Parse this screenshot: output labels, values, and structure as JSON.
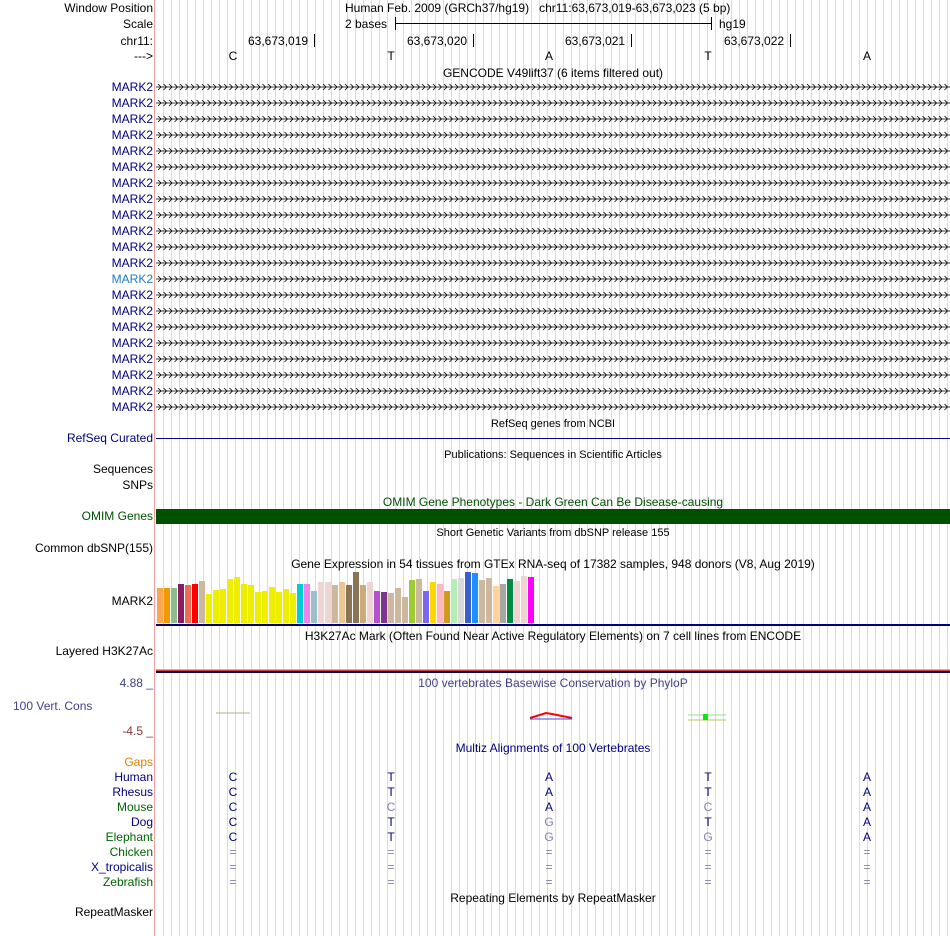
{
  "header": {
    "window_position_label": "Window Position",
    "window_position": "Human Feb. 2009 (GRCh37/hg19)   chr11:63,673,019-63,673,023 (5 bp)",
    "scale_label": "Scale",
    "scale_text": "2 bases",
    "scale_db": "hg19",
    "chrom_label": "chr11:",
    "coords": [
      "63,673,019",
      "63,673,020",
      "63,673,021",
      "63,673,022"
    ],
    "strand_label": "--->",
    "bases": [
      "C",
      "T",
      "A",
      "T",
      "A"
    ]
  },
  "gencode": {
    "title": "GENCODE V49lift37 (6 items filtered out)",
    "items": [
      "MARK2",
      "MARK2",
      "MARK2",
      "MARK2",
      "MARK2",
      "MARK2",
      "MARK2",
      "MARK2",
      "MARK2",
      "MARK2",
      "MARK2",
      "MARK2",
      "MARK2",
      "MARK2",
      "MARK2",
      "MARK2",
      "MARK2",
      "MARK2",
      "MARK2",
      "MARK2",
      "MARK2"
    ],
    "highlighted_index": 12
  },
  "refseq": {
    "title": "RefSeq genes from NCBI",
    "label": "RefSeq Curated"
  },
  "publications": {
    "title": "Publications: Sequences in Scientific Articles",
    "labels": [
      "Sequences",
      "SNPs"
    ]
  },
  "omim": {
    "title": "OMIM Gene Phenotypes - Dark Green Can Be Disease-causing",
    "label": "OMIM Genes",
    "color": "#005000"
  },
  "dbsnp": {
    "title": "Short Genetic Variants from dbSNP release 155",
    "label": "Common dbSNP(155)"
  },
  "gtex": {
    "title": "Gene Expression in 54 tissues from GTEx RNA-seq of 17382 samples, 948 donors (V8, Aug 2019)",
    "label": "MARK2",
    "chart_data": {
      "type": "bar",
      "relative_values": [
        103,
        103,
        103,
        115,
        113,
        115,
        124,
        85,
        97,
        100,
        130,
        136,
        115,
        113,
        91,
        94,
        106,
        91,
        100,
        88,
        115,
        115,
        94,
        121,
        121,
        112,
        121,
        112,
        151,
        112,
        121,
        94,
        91,
        88,
        103,
        76,
        127,
        130,
        94,
        121,
        115,
        94,
        130,
        133,
        151,
        148,
        127,
        133,
        109,
        115,
        130,
        124,
        139,
        136
      ],
      "colors": [
        "#FFA54F",
        "#EE9A00",
        "#8FBC8F",
        "#8B1C62",
        "#EE6A50",
        "#FF0000",
        "#CDB79E",
        "#EEEE00",
        "#EEEE00",
        "#EEEE00",
        "#EEEE00",
        "#EEEE00",
        "#EEEE00",
        "#EEEE00",
        "#EEEE00",
        "#EEEE00",
        "#EEEE00",
        "#EEEE00",
        "#EEEE00",
        "#EEEE00",
        "#00CED1",
        "#EE82EE",
        "#9AC0CD",
        "#EED5D2",
        "#EED5D2",
        "#CDB79E",
        "#EEC591",
        "#8B7355",
        "#8B7355",
        "#CDAA7D",
        "#EED5D2",
        "#B452CD",
        "#7A378B",
        "#CDB79E",
        "#CDB79E",
        "#CDB79E",
        "#9ACD32",
        "#CDB79E",
        "#7B68EE",
        "#FFD700",
        "#FFB6C1",
        "#CD9B1D",
        "#B4EEB4",
        "#D9D9D9",
        "#3A5FCD",
        "#1E90FF",
        "#CDB79E",
        "#CDB79E",
        "#FFD39B",
        "#A6A6A6",
        "#008B45",
        "#EED5D2",
        "#EED5D2",
        "#FF00FF"
      ]
    }
  },
  "h3k27ac": {
    "title": "H3K27Ac Mark (Often Found Near Active Regulatory Elements) on 7 cell lines from ENCODE",
    "label": "Layered H3K27Ac"
  },
  "phylop": {
    "title": "100 vertebrates Basewise Conservation by PhyloP",
    "label": "100 Vert. Cons",
    "max": "4.88 _",
    "min": "-4.5 _"
  },
  "multiz": {
    "title": "Multiz Alignments of 100 Vertebrates",
    "gaps_label": "Gaps",
    "species": [
      {
        "name": "Human",
        "color": "#000080",
        "bases": [
          "C",
          "T",
          "A",
          "T",
          "A"
        ],
        "faint": [
          0,
          0,
          0,
          0,
          0
        ]
      },
      {
        "name": "Rhesus",
        "color": "#000080",
        "bases": [
          "C",
          "T",
          "A",
          "T",
          "A"
        ],
        "faint": [
          0,
          0,
          0,
          0,
          0
        ]
      },
      {
        "name": "Mouse",
        "color": "#006400",
        "bases": [
          "C",
          "C",
          "A",
          "C",
          "A"
        ],
        "faint": [
          0,
          1,
          0,
          1,
          0
        ]
      },
      {
        "name": "Dog",
        "color": "#000080",
        "bases": [
          "C",
          "T",
          "G",
          "T",
          "A"
        ],
        "faint": [
          0,
          0,
          1,
          0,
          0
        ]
      },
      {
        "name": "Elephant",
        "color": "#006400",
        "bases": [
          "C",
          "T",
          "G",
          "G",
          "A"
        ],
        "faint": [
          0,
          0,
          1,
          1,
          0
        ]
      },
      {
        "name": "Chicken",
        "color": "#006400",
        "bases": [
          "=",
          "=",
          "=",
          "=",
          "="
        ],
        "faint": [
          1,
          1,
          1,
          1,
          1
        ]
      },
      {
        "name": "X_tropicalis",
        "color": "#000080",
        "bases": [
          "=",
          "=",
          "=",
          "=",
          "="
        ],
        "faint": [
          1,
          1,
          1,
          1,
          1
        ]
      },
      {
        "name": "Zebrafish",
        "color": "#006400",
        "bases": [
          "=",
          "=",
          "=",
          "=",
          "="
        ],
        "faint": [
          1,
          1,
          1,
          1,
          1
        ]
      }
    ]
  },
  "repeatmasker": {
    "title": "Repeating Elements by RepeatMasker",
    "label": "RepeatMasker"
  }
}
